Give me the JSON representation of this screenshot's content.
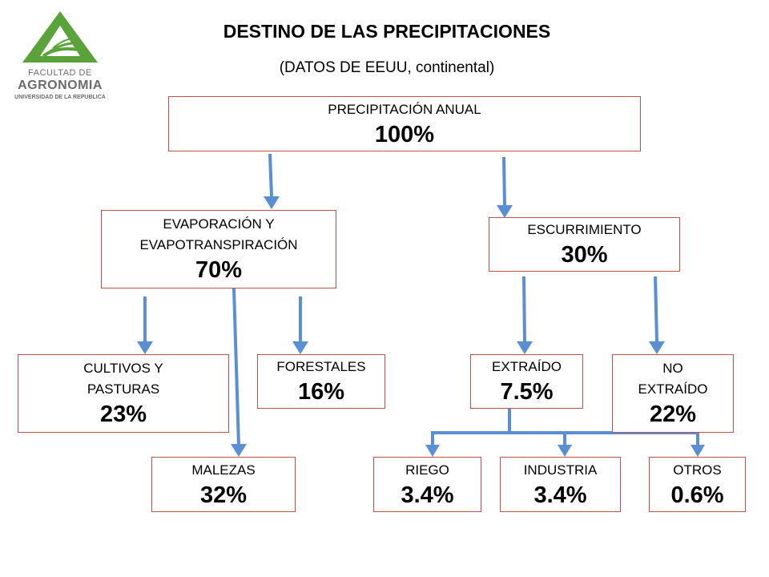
{
  "title": "DESTINO DE LAS PRECIPITACIONES",
  "subtitle": "(DATOS DE EEUU, continental)",
  "logo": {
    "line1": "FACULTAD DE",
    "line2": "AGRONOMIA",
    "line3": "UNIVERSIDAD DE LA REPUBLICA",
    "colors": {
      "green": "#5aa33a",
      "text": "#6b6b6b"
    }
  },
  "colors": {
    "box_border": "#c0504d",
    "arrow": "#5b8fd4"
  },
  "nodes": {
    "precipitacion": {
      "lines": [
        "PRECIPITACIÓN  ANUAL"
      ],
      "value": "100%"
    },
    "evaporacion": {
      "lines": [
        "EVAPORACIÓN Y",
        "EVAPOTRANSPIRACIÓN"
      ],
      "value": "70%"
    },
    "escurrimiento": {
      "lines": [
        "ESCURRIMIENTO"
      ],
      "value": "30%"
    },
    "cultivos": {
      "lines": [
        "CULTIVOS Y",
        "PASTURAS"
      ],
      "value": "23%"
    },
    "forestales": {
      "lines": [
        "FORESTALES"
      ],
      "value": "16%"
    },
    "extraido": {
      "lines": [
        "EXTRAÍDO"
      ],
      "value": "7.5%"
    },
    "no_extraido": {
      "lines": [
        "NO",
        "EXTRAÍDO"
      ],
      "value": "22%"
    },
    "malezas": {
      "lines": [
        "MALEZAS"
      ],
      "value": "32%"
    },
    "riego": {
      "lines": [
        "RIEGO"
      ],
      "value": "3.4%"
    },
    "industria": {
      "lines": [
        "INDUSTRIA"
      ],
      "value": "3.4%"
    },
    "otros": {
      "lines": [
        "OTROS"
      ],
      "value": "0.6%"
    }
  }
}
